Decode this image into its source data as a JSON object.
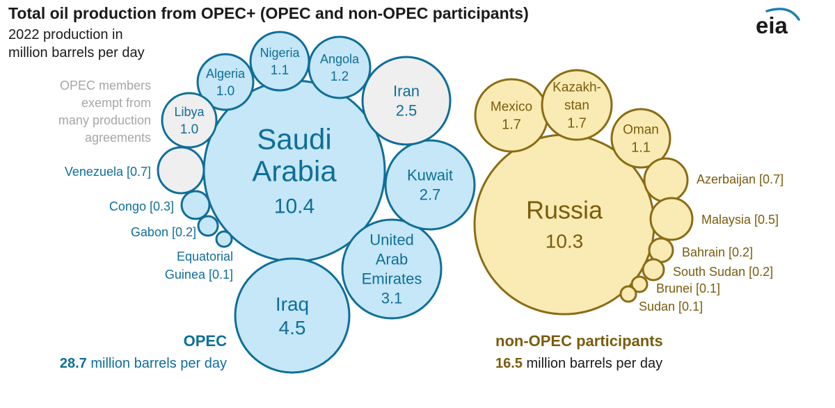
{
  "chart_data": {
    "type": "bubble",
    "title": "Total oil production from OPEC+ (OPEC and non-OPEC participants)",
    "subtitle": [
      "2022 production in",
      "million barrels per day"
    ],
    "exempt_note": [
      "OPEC members",
      "exempt from",
      "many production",
      "agreements"
    ],
    "colors": {
      "opec_fill": "#c5e7f7",
      "opec_stroke": "#0f6e99",
      "opec_text": "#0f6e99",
      "exempt_fill": "#efefef",
      "non_opec_fill": "#faebb4",
      "non_opec_stroke": "#8a6c14",
      "non_opec_text": "#7a5c0e",
      "title_text": "#1a1a1a",
      "note_text": "#a6a6a6"
    },
    "groups": [
      {
        "key": "opec",
        "name": "OPEC",
        "total": "28.7",
        "total_suffix": " million barrels per day",
        "countries": [
          {
            "name": "Saudi Arabia",
            "value": 10.4,
            "lines": [
              "Saudi",
              "Arabia"
            ],
            "label": "10.4",
            "exempt": false
          },
          {
            "name": "Iraq",
            "value": 4.5,
            "lines": [
              "Iraq"
            ],
            "label": "4.5",
            "exempt": false
          },
          {
            "name": "United Arab Emirates",
            "value": 3.1,
            "lines": [
              "United",
              "Arab",
              "Emirates"
            ],
            "label": "3.1",
            "exempt": false
          },
          {
            "name": "Kuwait",
            "value": 2.7,
            "lines": [
              "Kuwait"
            ],
            "label": "2.7",
            "exempt": false
          },
          {
            "name": "Iran",
            "value": 2.5,
            "lines": [
              "Iran"
            ],
            "label": "2.5",
            "exempt": true
          },
          {
            "name": "Angola",
            "value": 1.2,
            "lines": [
              "Angola"
            ],
            "label": "1.2",
            "exempt": false
          },
          {
            "name": "Nigeria",
            "value": 1.1,
            "lines": [
              "Nigeria"
            ],
            "label": "1.1",
            "exempt": false
          },
          {
            "name": "Algeria",
            "value": 1.0,
            "lines": [
              "Algeria"
            ],
            "label": "1.0",
            "exempt": false
          },
          {
            "name": "Libya",
            "value": 1.0,
            "lines": [
              "Libya"
            ],
            "label": "1.0",
            "exempt": true
          },
          {
            "name": "Venezuela",
            "value": 0.7,
            "lines": [
              "Venezuela [0.7]"
            ],
            "label": "",
            "exempt": true
          },
          {
            "name": "Congo",
            "value": 0.3,
            "lines": [
              "Congo [0.3]"
            ],
            "label": "",
            "exempt": false
          },
          {
            "name": "Gabon",
            "value": 0.2,
            "lines": [
              "Gabon [0.2]"
            ],
            "label": "",
            "exempt": false
          },
          {
            "name": "Equatorial Guinea",
            "value": 0.1,
            "lines": [
              "Equatorial",
              "Guinea [0.1]"
            ],
            "label": "",
            "exempt": false
          }
        ]
      },
      {
        "key": "non_opec",
        "name": "non-OPEC participants",
        "total": "16.5",
        "total_suffix": " million barrels per day",
        "countries": [
          {
            "name": "Russia",
            "value": 10.3,
            "lines": [
              "Russia"
            ],
            "label": "10.3"
          },
          {
            "name": "Mexico",
            "value": 1.7,
            "lines": [
              "Mexico"
            ],
            "label": "1.7"
          },
          {
            "name": "Kazakhstan",
            "value": 1.7,
            "lines": [
              "Kazakh-",
              "stan"
            ],
            "label": "1.7"
          },
          {
            "name": "Oman",
            "value": 1.1,
            "lines": [
              "Oman"
            ],
            "label": "1.1"
          },
          {
            "name": "Azerbaijan",
            "value": 0.7,
            "lines": [
              "Azerbaijan [0.7]"
            ],
            "label": ""
          },
          {
            "name": "Malaysia",
            "value": 0.5,
            "lines": [
              "Malaysia [0.5]"
            ],
            "label": ""
          },
          {
            "name": "Bahrain",
            "value": 0.2,
            "lines": [
              "Bahrain [0.2]"
            ],
            "label": ""
          },
          {
            "name": "South Sudan",
            "value": 0.2,
            "lines": [
              "South Sudan [0.2]"
            ],
            "label": ""
          },
          {
            "name": "Brunei",
            "value": 0.1,
            "lines": [
              "Brunei [0.1]"
            ],
            "label": ""
          },
          {
            "name": "Sudan",
            "value": 0.1,
            "lines": [
              "Sudan [0.1]"
            ],
            "label": ""
          }
        ]
      }
    ]
  },
  "logo": {
    "text": "eia",
    "color": "#1a1a1a",
    "accent": "#1a7fb5"
  }
}
